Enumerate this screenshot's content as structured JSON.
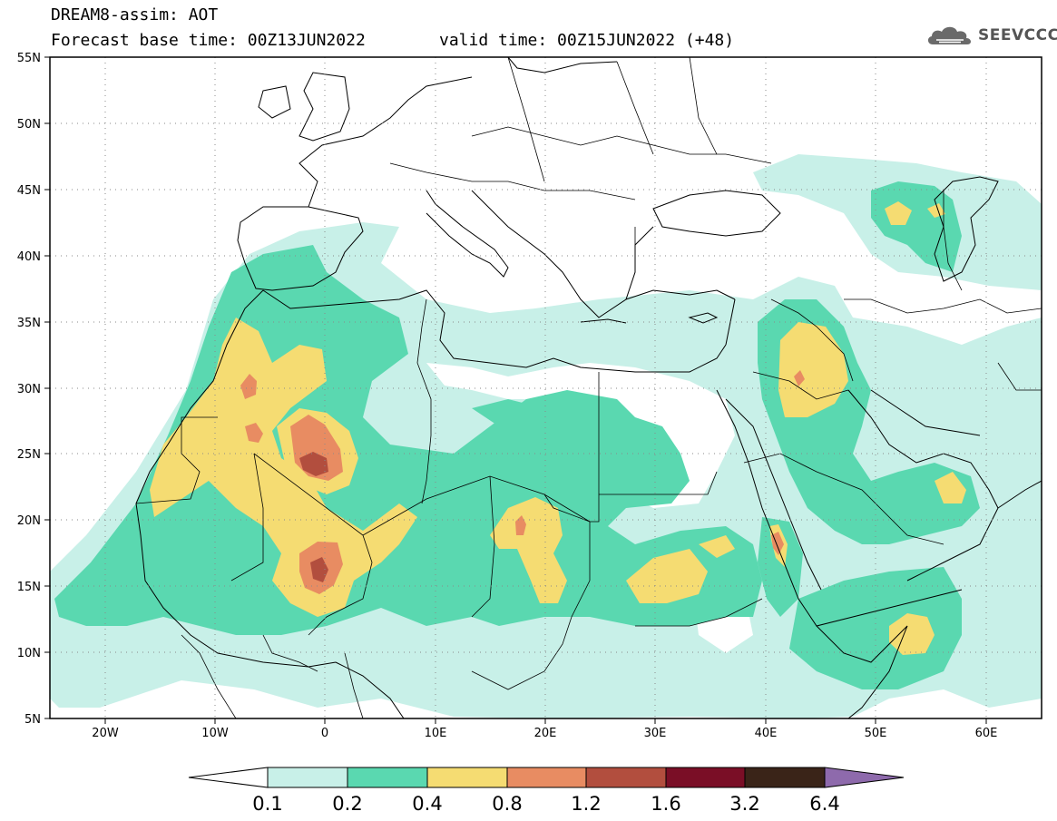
{
  "header": {
    "title": "DREAM8-assim: AOT",
    "base_time": "Forecast base time: 00Z13JUN2022",
    "valid_time": "valid time: 00Z15JUN2022 (+48)"
  },
  "logo": {
    "text": "SEEVCCC",
    "icon": "cloud-icon"
  },
  "map": {
    "lat_range": [
      5,
      55
    ],
    "lon_range": [
      -25,
      65
    ],
    "lat_ticks": [
      "5N",
      "10N",
      "15N",
      "20N",
      "25N",
      "30N",
      "35N",
      "40N",
      "45N",
      "50N",
      "55N"
    ],
    "lon_ticks": [
      "20W",
      "10W",
      "0",
      "10E",
      "20E",
      "30E",
      "40E",
      "50E",
      "60E"
    ],
    "grid": "dotted"
  },
  "colorbar": {
    "levels": [
      "0.1",
      "0.2",
      "0.4",
      "0.8",
      "1.2",
      "1.6",
      "3.2",
      "6.4"
    ],
    "colors": [
      "#ffffff",
      "#c8f0e8",
      "#5ad8b0",
      "#f5dc72",
      "#e88c62",
      "#b24e3e",
      "#7a0e26",
      "#3a2418",
      "#8e6aac"
    ]
  }
}
